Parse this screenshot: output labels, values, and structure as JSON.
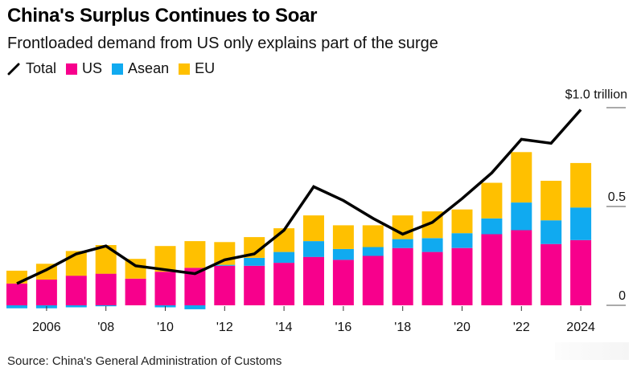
{
  "header": {
    "title": "China's Surplus Continues to Soar",
    "subtitle": "Frontloaded demand from US only explains part of the surge"
  },
  "legend": {
    "items": [
      {
        "key": "total",
        "label": "Total",
        "icon": "line-icon",
        "color": "#000000"
      },
      {
        "key": "us",
        "label": "US",
        "icon": "square-icon",
        "color": "#F7008C"
      },
      {
        "key": "asean",
        "label": "Asean",
        "icon": "square-icon",
        "color": "#10AAF0"
      },
      {
        "key": "eu",
        "label": "EU",
        "icon": "square-icon",
        "color": "#FFC000"
      }
    ]
  },
  "footer": {
    "source": "Source: China's General Administration of Customs"
  },
  "chart_data": {
    "type": "bar",
    "stacked": true,
    "title": "China's Surplus Continues to Soar",
    "subtitle": "Frontloaded demand from US only explains part of the surge",
    "xlabel": "",
    "ylabel": "",
    "units": "trillion USD",
    "x": [
      2005,
      2006,
      2007,
      2008,
      2009,
      2010,
      2011,
      2012,
      2013,
      2014,
      2015,
      2016,
      2017,
      2018,
      2019,
      2020,
      2021,
      2022,
      2023,
      2024
    ],
    "x_tick_values": [
      2006,
      2008,
      2010,
      2012,
      2014,
      2016,
      2018,
      2020,
      2022,
      2024
    ],
    "x_tick_labels": [
      "2006",
      "'08",
      "'10",
      "'12",
      "'14",
      "'16",
      "'18",
      "'20",
      "'22",
      "2024"
    ],
    "ylim": [
      0,
      1.0
    ],
    "y_ticks": [
      {
        "value": 0,
        "label": "0"
      },
      {
        "value": 0.5,
        "label": "0.5"
      },
      {
        "value": 1.0,
        "label": ""
      }
    ],
    "grid": "right-side tick marks",
    "legend_position": "top-left",
    "series": [
      {
        "name": "US",
        "kind": "bar",
        "color": "#F7008C",
        "values": [
          0.11,
          0.13,
          0.15,
          0.16,
          0.135,
          0.17,
          0.19,
          0.2,
          0.2,
          0.215,
          0.245,
          0.23,
          0.25,
          0.29,
          0.27,
          0.29,
          0.36,
          0.38,
          0.31,
          0.33
        ]
      },
      {
        "name": "Asean",
        "kind": "bar",
        "color": "#10AAF0",
        "values": [
          -0.015,
          -0.015,
          -0.01,
          -0.005,
          0.0,
          -0.01,
          -0.02,
          0.005,
          0.04,
          0.055,
          0.08,
          0.055,
          0.045,
          0.045,
          0.07,
          0.075,
          0.08,
          0.14,
          0.12,
          0.165
        ]
      },
      {
        "name": "EU",
        "kind": "bar",
        "color": "#FFC000",
        "values": [
          0.065,
          0.08,
          0.125,
          0.145,
          0.1,
          0.13,
          0.135,
          0.115,
          0.105,
          0.12,
          0.13,
          0.12,
          0.11,
          0.12,
          0.135,
          0.12,
          0.18,
          0.255,
          0.2,
          0.225
        ]
      },
      {
        "name": "Total",
        "kind": "line",
        "color": "#000000",
        "values": [
          0.11,
          0.18,
          0.26,
          0.3,
          0.2,
          0.18,
          0.16,
          0.23,
          0.26,
          0.38,
          0.6,
          0.53,
          0.44,
          0.36,
          0.42,
          0.54,
          0.67,
          0.84,
          0.82,
          0.99
        ]
      }
    ],
    "annotations": [
      {
        "x": 2024,
        "series": "Total",
        "text": "$1.0 trillion"
      }
    ]
  }
}
